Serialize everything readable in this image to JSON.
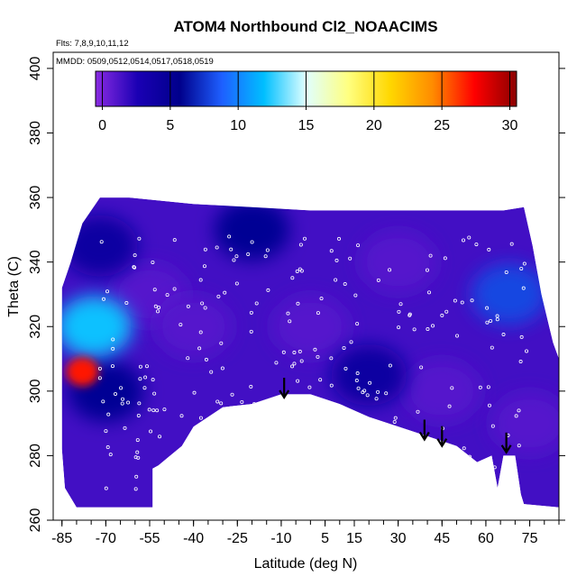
{
  "chart_data": {
    "type": "heatmap",
    "title": "ATOM4 Northbound Cl2_NOAACIMS",
    "flights_label": "Flts: 7,8,9,10,11,12",
    "dates_label": "MMDD: 0509,0512,0514,0517,0518,0519",
    "xlabel": "Latitude (deg N)",
    "ylabel": "Theta (C)",
    "xlim": [
      -88,
      85
    ],
    "ylim": [
      260,
      405
    ],
    "x_ticks": [
      -85,
      -70,
      -55,
      -40,
      -25,
      -10,
      5,
      15,
      30,
      45,
      60,
      75
    ],
    "x_tick_labels": [
      "-85",
      "-70",
      "-55",
      "-40",
      "-25",
      "-10",
      "5",
      "15",
      "30",
      "45",
      "60",
      "75"
    ],
    "y_ticks": [
      260,
      280,
      300,
      320,
      340,
      360,
      380,
      400
    ],
    "y_tick_labels": [
      "260",
      "280",
      "300",
      "320",
      "340",
      "360",
      "380",
      "400"
    ],
    "colorbar": {
      "range": [
        -0.5,
        30.5
      ],
      "ticks": [
        0,
        5,
        10,
        15,
        20,
        25,
        30
      ],
      "tick_labels": [
        "0",
        "5",
        "10",
        "15",
        "20",
        "25",
        "30"
      ],
      "colors": [
        "#8a2be2",
        "#1a00b4",
        "#00008b",
        "#1e5fff",
        "#00bfff",
        "#e0ffff",
        "#ffff80",
        "#ffd700",
        "#ff8c00",
        "#ff0000",
        "#8b0000"
      ]
    },
    "field_boundary": {
      "top": [
        [
          -85,
          332
        ],
        [
          -82,
          340
        ],
        [
          -78,
          352
        ],
        [
          -72,
          360
        ],
        [
          -62,
          360
        ],
        [
          -40,
          358
        ],
        [
          0,
          356
        ],
        [
          40,
          356
        ],
        [
          66,
          356
        ],
        [
          73,
          357
        ],
        [
          76,
          345
        ],
        [
          79,
          330
        ],
        [
          83,
          315
        ],
        [
          85,
          310
        ]
      ],
      "bottom": [
        [
          85,
          264
        ],
        [
          73,
          265
        ],
        [
          72,
          268
        ],
        [
          70,
          280
        ],
        [
          66,
          280
        ],
        [
          64,
          270
        ],
        [
          62,
          280
        ],
        [
          57,
          278
        ],
        [
          50,
          283
        ],
        [
          40,
          286
        ],
        [
          20,
          292
        ],
        [
          10,
          296
        ],
        [
          0,
          299
        ],
        [
          -10,
          299
        ],
        [
          -20,
          296
        ],
        [
          -30,
          295
        ],
        [
          -40,
          289
        ],
        [
          -44,
          283
        ],
        [
          -52,
          277
        ],
        [
          -54,
          276
        ],
        [
          -54,
          264
        ],
        [
          -80,
          264
        ],
        [
          -84,
          270
        ],
        [
          -85,
          282
        ]
      ]
    },
    "field_values": [
      {
        "lat": -72,
        "theta": 345,
        "value": 4
      },
      {
        "lat": -74,
        "theta": 320,
        "value": 12
      },
      {
        "lat": -78,
        "theta": 306,
        "value": 27
      },
      {
        "lat": -70,
        "theta": 300,
        "value": 5
      },
      {
        "lat": -55,
        "theta": 330,
        "value": 1
      },
      {
        "lat": -40,
        "theta": 320,
        "value": 1
      },
      {
        "lat": -20,
        "theta": 350,
        "value": 5
      },
      {
        "lat": 0,
        "theta": 320,
        "value": 1
      },
      {
        "lat": 20,
        "theta": 305,
        "value": 4
      },
      {
        "lat": 30,
        "theta": 340,
        "value": 1
      },
      {
        "lat": 45,
        "theta": 300,
        "value": 1
      },
      {
        "lat": 68,
        "theta": 330,
        "value": 8
      },
      {
        "lat": 75,
        "theta": 290,
        "value": 1
      }
    ],
    "arrows": [
      {
        "lat": -9,
        "theta": 298
      },
      {
        "lat": 39,
        "theta": 285
      },
      {
        "lat": 45,
        "theta": 283
      },
      {
        "lat": 67,
        "theta": 281
      }
    ]
  }
}
